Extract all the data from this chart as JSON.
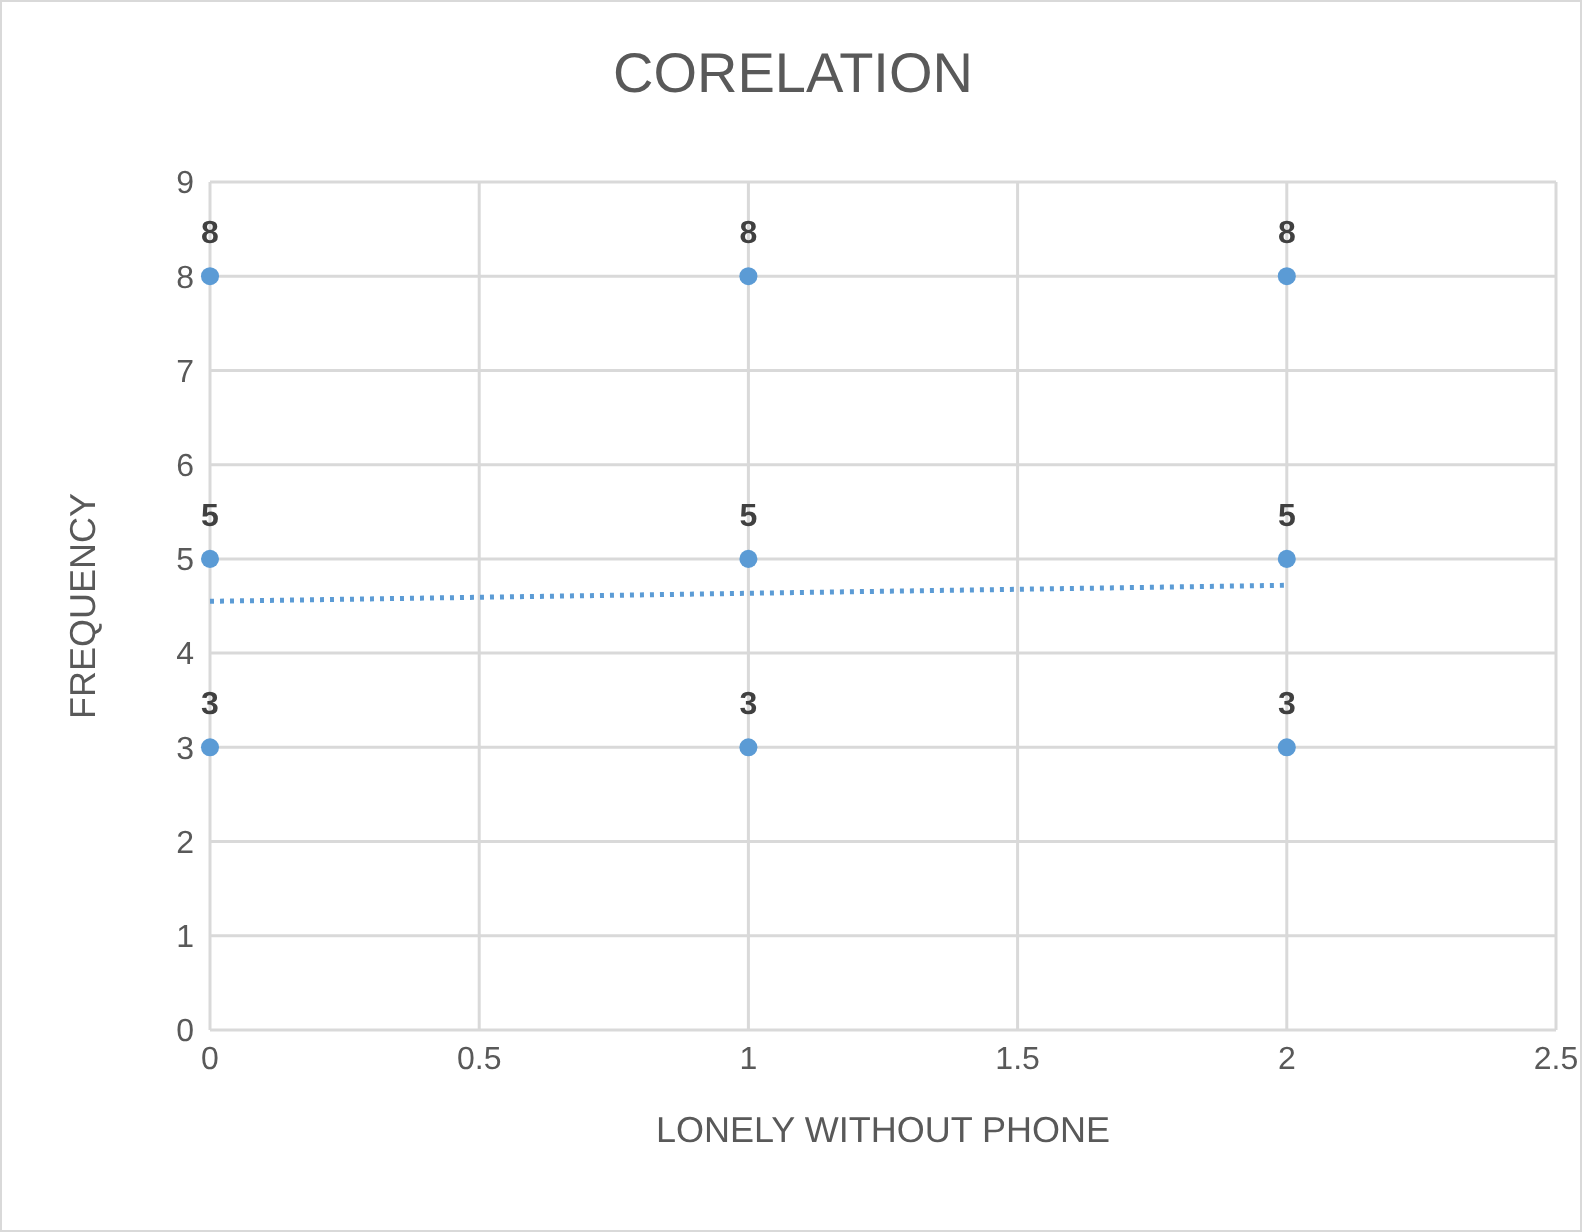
{
  "chart_data": {
    "type": "scatter",
    "title": "CORELATION",
    "xlabel": "LONELY WITHOUT PHONE",
    "ylabel": "FREQUENCY",
    "xlim": [
      0,
      2.5
    ],
    "xticks": [
      0,
      0.5,
      1,
      1.5,
      2,
      2.5
    ],
    "ylim": [
      0,
      9
    ],
    "yticks": [
      0,
      1,
      2,
      3,
      4,
      5,
      6,
      7,
      8,
      9
    ],
    "grid": true,
    "series": [
      {
        "color": "#5b9bd5",
        "marker": "circle",
        "x": [
          0,
          0,
          0,
          1,
          1,
          1,
          2,
          2,
          2
        ],
        "values": [
          8,
          5,
          3,
          8,
          5,
          3,
          8,
          5,
          3
        ],
        "value_labels": [
          "8",
          "5",
          "3",
          "8",
          "5",
          "3",
          "8",
          "5",
          "3"
        ]
      },
      {
        "type": "line",
        "line_style": "dotted",
        "marker": "none",
        "color": "#5b9bd5",
        "x": [
          0,
          2
        ],
        "values": [
          4.55,
          4.72
        ]
      }
    ]
  }
}
